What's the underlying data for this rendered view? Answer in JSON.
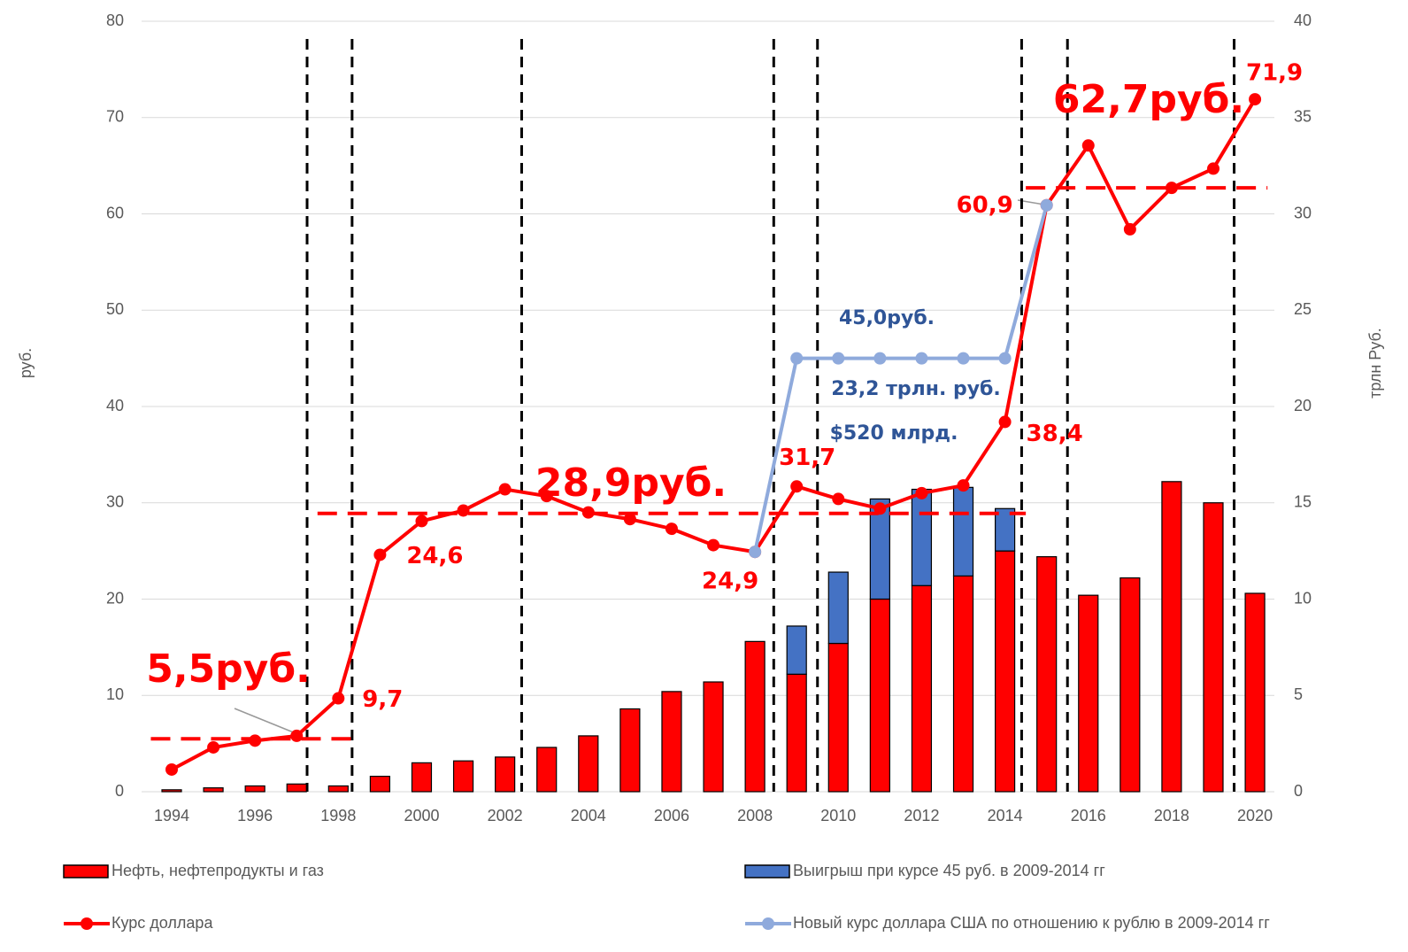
{
  "chart_data": {
    "type": "bar",
    "y_label": "руб.",
    "y2_label": "трлн Руб.",
    "categories": [
      "1994",
      null,
      "1996",
      null,
      "1998",
      null,
      "2000",
      null,
      "2002",
      null,
      "2004",
      null,
      "2006",
      null,
      "2008",
      null,
      "2010",
      null,
      "2012",
      null,
      "2014",
      null,
      "2016",
      null,
      "2018",
      null,
      "2020"
    ],
    "ylim": [
      0,
      80
    ],
    "yticks": [
      0,
      10,
      20,
      30,
      40,
      50,
      60,
      70,
      80
    ],
    "y2lim": [
      0,
      40
    ],
    "y2ticks": [
      0,
      5,
      10,
      15,
      20,
      25,
      30,
      35,
      40
    ],
    "grid": true,
    "series": [
      {
        "name": "Нефть, нефтепродукты и газ",
        "type": "bar",
        "axis": "y2",
        "color": "#ff0000",
        "values": [
          0.1,
          0.2,
          0.3,
          0.4,
          0.3,
          0.8,
          1.5,
          1.6,
          1.8,
          2.3,
          2.9,
          4.3,
          5.2,
          5.7,
          7.8,
          6.1,
          7.7,
          10.0,
          10.7,
          11.2,
          12.5,
          12.2,
          10.2,
          11.1,
          16.1,
          15.0,
          10.3
        ]
      },
      {
        "name": "Выигрыш при курсе 45 руб. в 2009-2014 гг",
        "type": "bar",
        "axis": "y2",
        "color": "#4472c4",
        "values": [
          null,
          null,
          null,
          null,
          null,
          null,
          null,
          null,
          null,
          null,
          null,
          null,
          null,
          null,
          null,
          2.5,
          3.7,
          5.2,
          5.0,
          4.6,
          2.2,
          null,
          null,
          null,
          null,
          null,
          null
        ]
      },
      {
        "name": "Курс доллара",
        "type": "line",
        "axis": "y",
        "color": "#ff0000",
        "values": [
          2.3,
          4.6,
          5.3,
          5.8,
          9.7,
          24.6,
          28.1,
          29.2,
          31.4,
          30.7,
          29.0,
          28.3,
          27.3,
          25.6,
          24.9,
          31.7,
          30.4,
          29.4,
          31.0,
          31.8,
          38.4,
          60.9,
          67.1,
          58.4,
          62.7,
          64.7,
          71.9
        ],
        "value_labels": [
          null,
          null,
          null,
          null,
          "9,7",
          "24,6",
          null,
          null,
          null,
          null,
          null,
          null,
          null,
          null,
          "24,9",
          "31,7",
          null,
          null,
          null,
          null,
          "38,4",
          "60,9",
          null,
          null,
          null,
          null,
          "71,9"
        ]
      },
      {
        "name": "Новый курс доллара США по отношению к рублю в 2009-2014 гг",
        "type": "line",
        "axis": "y",
        "color": "#8faadc",
        "values": [
          null,
          null,
          null,
          null,
          null,
          null,
          null,
          null,
          null,
          null,
          null,
          null,
          null,
          null,
          24.9,
          45.0,
          45.0,
          45.0,
          45.0,
          45.0,
          45.0,
          60.9,
          null,
          null,
          null,
          null,
          null
        ]
      }
    ],
    "averages": [
      {
        "value": 5.5,
        "label": "5,5руб.",
        "x": [
          1993.5,
          1998.3
        ]
      },
      {
        "value": 28.9,
        "label": "28,9руб.",
        "x": [
          1997.5,
          2014.5
        ]
      },
      {
        "value": 62.7,
        "label": "62,7руб.",
        "x": [
          2014.5,
          2020.3
        ]
      }
    ],
    "period_lines": [
      1997.25,
      1998.33,
      2002.4,
      2008.45,
      2009.5,
      2014.4,
      2015.5,
      2019.5
    ],
    "annotations": [
      "45,0руб.",
      "23,2 трлн. руб.",
      "$520 млрд."
    ]
  }
}
